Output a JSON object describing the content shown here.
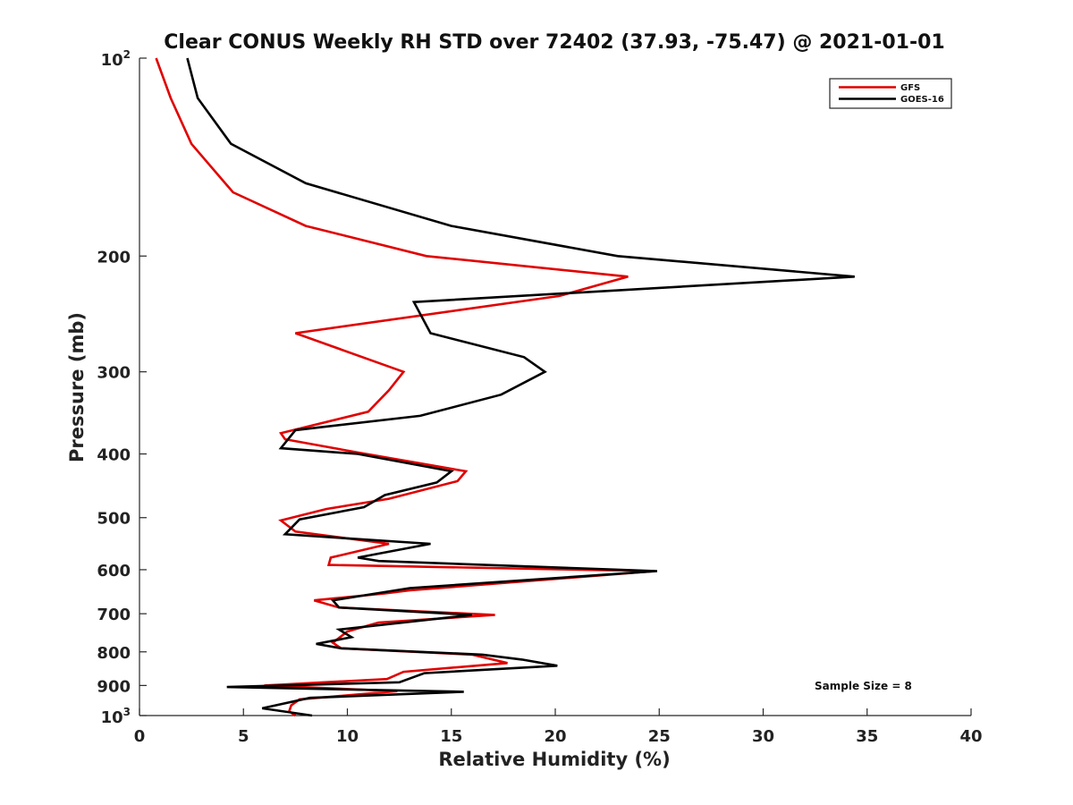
{
  "chart_data": {
    "type": "line",
    "title": "Clear CONUS Weekly RH STD over 72402 (37.93, -75.47) @ 2021-01-01",
    "xlabel": "Relative Humidity (%)",
    "ylabel": "Pressure (mb)",
    "xlim": [
      0,
      40
    ],
    "ylim": [
      100,
      1000
    ],
    "y_scale": "log",
    "y_reversed": true,
    "x_ticks": [
      0,
      5,
      10,
      15,
      20,
      25,
      30,
      35,
      40
    ],
    "x_tick_labels": [
      "0",
      "5",
      "10",
      "15",
      "20",
      "25",
      "30",
      "35",
      "40"
    ],
    "y_ticks": [
      200,
      300,
      400,
      500,
      600,
      700,
      800,
      900
    ],
    "y_tick_labels": [
      "200",
      "300",
      "400",
      "500",
      "600",
      "700",
      "800",
      "900"
    ],
    "y_tick_top": {
      "base": "10",
      "exp": "2"
    },
    "y_tick_bottom": {
      "base": "10",
      "exp": "3"
    },
    "series": [
      {
        "name": "GFS",
        "color": "#e00000",
        "points": [
          [
            0.8,
            100
          ],
          [
            1.5,
            115
          ],
          [
            2.5,
            135
          ],
          [
            4.5,
            160
          ],
          [
            8,
            180
          ],
          [
            13.8,
            200
          ],
          [
            23.5,
            215
          ],
          [
            20.2,
            230
          ],
          [
            7.5,
            262
          ],
          [
            12.7,
            300
          ],
          [
            12,
            320
          ],
          [
            11,
            345
          ],
          [
            6.8,
            372
          ],
          [
            7,
            380
          ],
          [
            10.5,
            398
          ],
          [
            15.7,
            425
          ],
          [
            15.3,
            440
          ],
          [
            12,
            468
          ],
          [
            9,
            485
          ],
          [
            6.8,
            505
          ],
          [
            7.5,
            525
          ],
          [
            12,
            548
          ],
          [
            9.2,
            575
          ],
          [
            9.1,
            590
          ],
          [
            24.8,
            603
          ],
          [
            13,
            645
          ],
          [
            11.8,
            652
          ],
          [
            8.4,
            668
          ],
          [
            9.6,
            685
          ],
          [
            17.1,
            703
          ],
          [
            11.5,
            722
          ],
          [
            10,
            745
          ],
          [
            9.3,
            775
          ],
          [
            9.7,
            790
          ],
          [
            16,
            808
          ],
          [
            17.7,
            832
          ],
          [
            12.7,
            858
          ],
          [
            11.9,
            880
          ],
          [
            6,
            900
          ],
          [
            12.4,
            918
          ],
          [
            7.7,
            945
          ],
          [
            7.3,
            965
          ],
          [
            7.2,
            985
          ],
          [
            7.5,
            1000
          ]
        ]
      },
      {
        "name": "GOES-16",
        "color": "#000000",
        "points": [
          [
            2.3,
            100
          ],
          [
            2.8,
            115
          ],
          [
            4.4,
            135
          ],
          [
            8,
            155
          ],
          [
            15,
            180
          ],
          [
            23,
            200
          ],
          [
            34.4,
            215
          ],
          [
            13.2,
            235
          ],
          [
            14,
            262
          ],
          [
            18.5,
            285
          ],
          [
            19.5,
            300
          ],
          [
            17.4,
            325
          ],
          [
            13.5,
            350
          ],
          [
            7.5,
            368
          ],
          [
            6.8,
            392
          ],
          [
            10.5,
            400
          ],
          [
            15,
            425
          ],
          [
            14.3,
            442
          ],
          [
            11.8,
            462
          ],
          [
            10.8,
            482
          ],
          [
            7.7,
            503
          ],
          [
            7,
            530
          ],
          [
            14,
            548
          ],
          [
            10.5,
            575
          ],
          [
            11.5,
            582
          ],
          [
            24.9,
            603
          ],
          [
            13,
            640
          ],
          [
            9.3,
            668
          ],
          [
            9.6,
            685
          ],
          [
            16,
            703
          ],
          [
            9.6,
            740
          ],
          [
            10.2,
            760
          ],
          [
            8.5,
            778
          ],
          [
            9.7,
            790
          ],
          [
            16.5,
            808
          ],
          [
            18.4,
            822
          ],
          [
            20.1,
            840
          ],
          [
            13.7,
            862
          ],
          [
            12.5,
            890
          ],
          [
            4.2,
            905
          ],
          [
            15.6,
            920
          ],
          [
            8.2,
            940
          ],
          [
            5.9,
            975
          ],
          [
            8.3,
            1000
          ]
        ]
      }
    ],
    "legend": [
      {
        "label": "GFS",
        "color": "#e00000"
      },
      {
        "label": "GOES-16",
        "color": "#000000"
      }
    ],
    "legend_position": "top-right",
    "annotation": "Sample Size = 8",
    "grid": false
  }
}
